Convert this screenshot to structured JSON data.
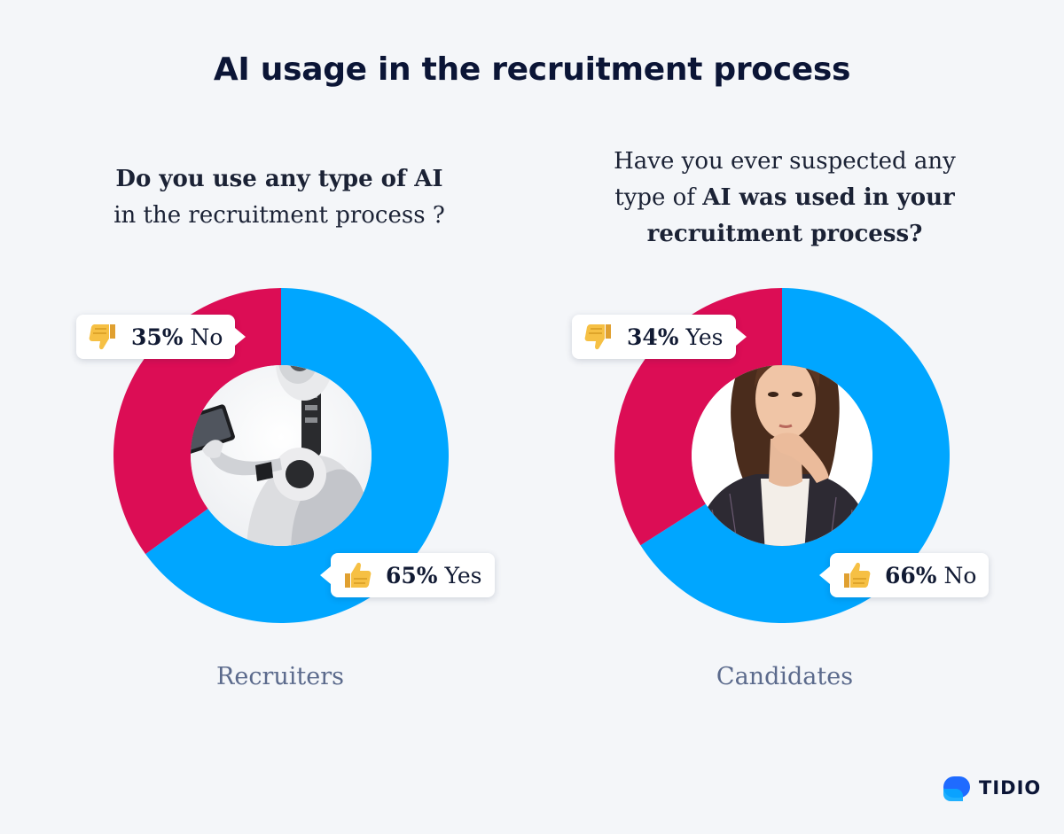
{
  "title": "AI usage in the recruitment process",
  "colors": {
    "yes_blue": "#00a6ff",
    "no_red": "#dc0d55",
    "background": "#f4f6f9"
  },
  "left_panel": {
    "question_bold": "Do you use any type of AI",
    "question_rest": "in the recruitment process ?",
    "caption": "Recruiters",
    "label_small": {
      "pct": "35%",
      "text": "No",
      "icon": "thumbs-down-icon"
    },
    "label_large": {
      "pct": "65%",
      "text": "Yes",
      "icon": "thumbs-up-icon"
    },
    "photo": "robot-with-tablet"
  },
  "right_panel": {
    "question_line1": "Have you ever suspected any",
    "question_line2_plain": "type of ",
    "question_line2_bold": "AI was used in your",
    "question_line3_bold": "recruitment process?",
    "caption": "Candidates",
    "label_small": {
      "pct": "34%",
      "text": "Yes",
      "icon": "thumbs-down-icon"
    },
    "label_large": {
      "pct": "66%",
      "text": "No",
      "icon": "thumbs-up-icon"
    },
    "photo": "thinking-woman"
  },
  "chart_data": [
    {
      "type": "pie",
      "group": "Recruiters",
      "question": "Do you use any type of AI in the recruitment process ?",
      "categories": [
        "Yes",
        "No"
      ],
      "values": [
        65,
        35
      ],
      "colors": [
        "#00a6ff",
        "#dc0d55"
      ]
    },
    {
      "type": "pie",
      "group": "Candidates",
      "question": "Have you ever suspected any type of AI was used in your recruitment process?",
      "categories": [
        "No",
        "Yes"
      ],
      "values": [
        66,
        34
      ],
      "colors": [
        "#00a6ff",
        "#dc0d55"
      ]
    }
  ],
  "brand": {
    "name": "TIDIO",
    "icon": "tidio-logo-icon"
  }
}
